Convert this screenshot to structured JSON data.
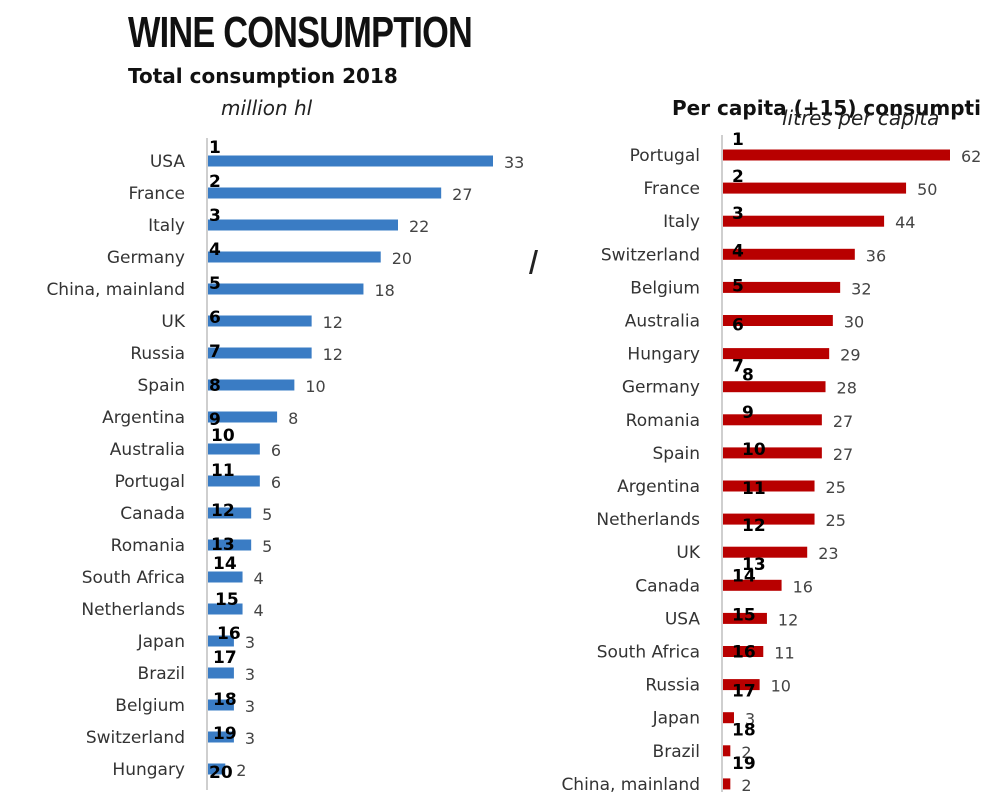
{
  "title": "WINE CONSUMPTION",
  "chart_data": [
    {
      "type": "bar",
      "orientation": "horizontal",
      "title": "Total consumption 2018",
      "unit": "million hl",
      "color": "#3a7cc4",
      "xlim": [
        0,
        33
      ],
      "grid": false,
      "categories": [
        "USA",
        "France",
        "Italy",
        "Germany",
        "China, mainland",
        "UK",
        "Russia",
        "Spain",
        "Argentina",
        "Australia",
        "Portugal",
        "Canada",
        "Romania",
        "South Africa",
        "Netherlands",
        "Japan",
        "Brazil",
        "Belgium",
        "Switzerland",
        "Hungary"
      ],
      "values": [
        33,
        27,
        22,
        20,
        18,
        12,
        12,
        10,
        8,
        6,
        6,
        5,
        5,
        4,
        4,
        3,
        3,
        3,
        3,
        2
      ],
      "ranks": [
        "1",
        "2",
        "3",
        "4",
        "5",
        "6",
        "7",
        "8",
        "9",
        "10",
        "11",
        "12",
        "13",
        "14",
        "15",
        "16",
        "17",
        "18",
        "19",
        "20"
      ]
    },
    {
      "type": "bar",
      "orientation": "horizontal",
      "title": "Per capita (+15) consumpti",
      "unit": "litres per capita",
      "color": "#b80000",
      "xlim": [
        0,
        62
      ],
      "grid": false,
      "categories": [
        "Portugal",
        "France",
        "Italy",
        "Switzerland",
        "Belgium",
        "Australia",
        "Hungary",
        "Germany",
        "Romania",
        "Spain",
        "Argentina",
        "Netherlands",
        "UK",
        "Canada",
        "USA",
        "South Africa",
        "Russia",
        "Japan",
        "Brazil",
        "China, mainland"
      ],
      "values": [
        62,
        50,
        44,
        36,
        32,
        30,
        29,
        28,
        27,
        27,
        25,
        25,
        23,
        16,
        12,
        11,
        10,
        3,
        2,
        2
      ],
      "ranks": [
        "1",
        "2",
        "3",
        "4",
        "5",
        "6",
        "7",
        "8",
        "9",
        "10",
        "11",
        "12",
        "13",
        "14",
        "15",
        "16",
        "17",
        "18",
        "19",
        ""
      ]
    }
  ]
}
